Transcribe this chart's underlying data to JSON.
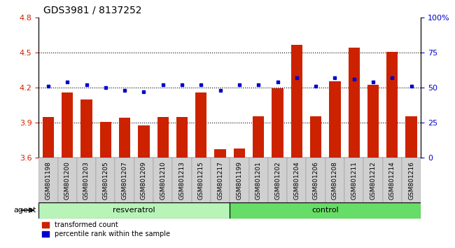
{
  "title": "GDS3981 / 8137252",
  "samples": [
    "GSM801198",
    "GSM801200",
    "GSM801203",
    "GSM801205",
    "GSM801207",
    "GSM801209",
    "GSM801210",
    "GSM801213",
    "GSM801215",
    "GSM801217",
    "GSM801199",
    "GSM801201",
    "GSM801202",
    "GSM801204",
    "GSM801206",
    "GSM801208",
    "GSM801211",
    "GSM801212",
    "GSM801214",
    "GSM801216"
  ],
  "red_values": [
    3.945,
    4.155,
    4.095,
    3.905,
    3.94,
    3.875,
    3.945,
    3.945,
    4.155,
    3.67,
    3.675,
    3.955,
    4.195,
    4.565,
    3.955,
    4.255,
    4.54,
    4.22,
    4.505,
    3.955
  ],
  "blue_values": [
    51,
    54,
    52,
    50,
    48,
    47,
    52,
    52,
    52,
    48,
    52,
    52,
    54,
    57,
    51,
    57,
    56,
    54,
    57,
    51
  ],
  "red_color": "#cc2200",
  "blue_color": "#0000cc",
  "ylim_left": [
    3.6,
    4.8
  ],
  "ylim_right": [
    0,
    100
  ],
  "yticks_left": [
    3.6,
    3.9,
    4.2,
    4.5,
    4.8
  ],
  "yticks_right": [
    0,
    25,
    50,
    75,
    100
  ],
  "ytick_labels_right": [
    "0",
    "25",
    "50",
    "75",
    "100%"
  ],
  "hlines": [
    3.9,
    4.2,
    4.5
  ],
  "bar_width": 0.6,
  "background_color": "#ffffff",
  "resv_color": "#b8f4b8",
  "ctrl_color": "#66dd66",
  "xticklabel_bg": "#d0d0d0",
  "group_border_color": "#000000",
  "legend_red": "transformed count",
  "legend_blue": "percentile rank within the sample",
  "title_fontsize": 10,
  "tick_fontsize": 8,
  "bar_label_fontsize": 6.5,
  "group_fontsize": 8,
  "legend_fontsize": 7,
  "n_resv": 10,
  "n_ctrl": 10
}
